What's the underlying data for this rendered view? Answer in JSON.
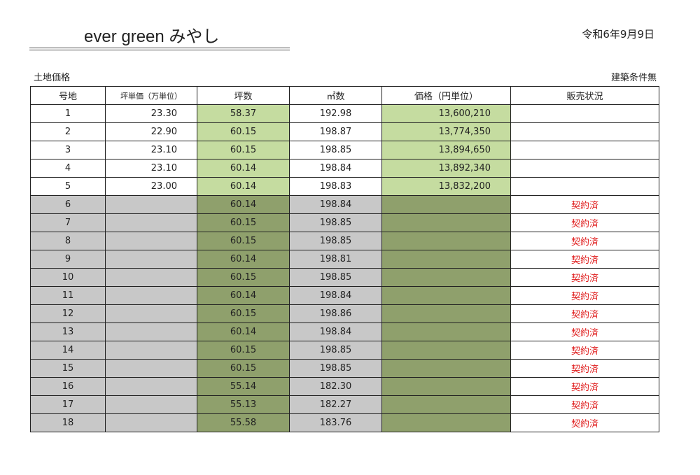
{
  "header": {
    "title": "ever green みやし",
    "date": "令和6年9月9日",
    "left_label": "土地価格",
    "right_label": "建築条件無"
  },
  "table": {
    "columns": [
      "号地",
      "坪単価（万単位）",
      "坪数",
      "㎡数",
      "価格（円単位）",
      "販売状況"
    ],
    "rows": [
      {
        "no": "1",
        "unit": "23.30",
        "tsubo": "58.37",
        "m2": "192.98",
        "price": "13,600,210",
        "status": ""
      },
      {
        "no": "2",
        "unit": "22.90",
        "tsubo": "60.15",
        "m2": "198.87",
        "price": "13,774,350",
        "status": ""
      },
      {
        "no": "3",
        "unit": "23.10",
        "tsubo": "60.15",
        "m2": "198.85",
        "price": "13,894,650",
        "status": ""
      },
      {
        "no": "4",
        "unit": "23.10",
        "tsubo": "60.14",
        "m2": "198.84",
        "price": "13,892,340",
        "status": ""
      },
      {
        "no": "5",
        "unit": "23.00",
        "tsubo": "60.14",
        "m2": "198.83",
        "price": "13,832,200",
        "status": ""
      },
      {
        "no": "6",
        "unit": "",
        "tsubo": "60.14",
        "m2": "198.84",
        "price": "",
        "status": "契約済"
      },
      {
        "no": "7",
        "unit": "",
        "tsubo": "60.15",
        "m2": "198.85",
        "price": "",
        "status": "契約済"
      },
      {
        "no": "8",
        "unit": "",
        "tsubo": "60.15",
        "m2": "198.85",
        "price": "",
        "status": "契約済"
      },
      {
        "no": "9",
        "unit": "",
        "tsubo": "60.14",
        "m2": "198.81",
        "price": "",
        "status": "契約済"
      },
      {
        "no": "10",
        "unit": "",
        "tsubo": "60.15",
        "m2": "198.85",
        "price": "",
        "status": "契約済"
      },
      {
        "no": "11",
        "unit": "",
        "tsubo": "60.14",
        "m2": "198.84",
        "price": "",
        "status": "契約済"
      },
      {
        "no": "12",
        "unit": "",
        "tsubo": "60.15",
        "m2": "198.86",
        "price": "",
        "status": "契約済"
      },
      {
        "no": "13",
        "unit": "",
        "tsubo": "60.14",
        "m2": "198.84",
        "price": "",
        "status": "契約済"
      },
      {
        "no": "14",
        "unit": "",
        "tsubo": "60.15",
        "m2": "198.85",
        "price": "",
        "status": "契約済"
      },
      {
        "no": "15",
        "unit": "",
        "tsubo": "60.15",
        "m2": "198.85",
        "price": "",
        "status": "契約済"
      },
      {
        "no": "16",
        "unit": "",
        "tsubo": "55.14",
        "m2": "182.30",
        "price": "",
        "status": "契約済"
      },
      {
        "no": "17",
        "unit": "",
        "tsubo": "55.13",
        "m2": "182.27",
        "price": "",
        "status": "契約済"
      },
      {
        "no": "18",
        "unit": "",
        "tsubo": "55.58",
        "m2": "183.76",
        "price": "",
        "status": "契約済"
      }
    ]
  },
  "colors": {
    "available_highlight": "#c5dca0",
    "sold_highlight": "#8fa06c",
    "sold_gray": "#c8c8c8",
    "sold_text": "#e02020"
  }
}
